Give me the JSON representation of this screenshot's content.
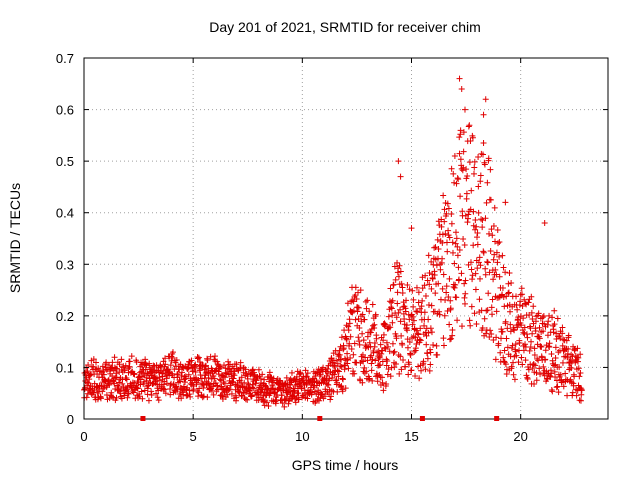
{
  "chart_data": {
    "type": "scatter",
    "title": "Day 201 of 2021, SRMTID for receiver chim",
    "xlabel": "GPS time / hours",
    "ylabel": "SRMTID / TECUs",
    "xlim": [
      0,
      24
    ],
    "ylim": [
      0,
      0.7
    ],
    "xticks": [
      0,
      5,
      10,
      15,
      20
    ],
    "yticks": [
      0,
      0.1,
      0.2,
      0.3,
      0.4,
      0.5,
      0.6,
      0.7
    ],
    "grid": true,
    "marker": "+",
    "color": "#e00000",
    "profile_hours": [
      0,
      1,
      2,
      3,
      4,
      5,
      6,
      7,
      8,
      9,
      10,
      11,
      11.8,
      12.3,
      13,
      13.7,
      14.3,
      15,
      15.6,
      16.3,
      17,
      17.5,
      18,
      18.5,
      19,
      19.6,
      20.2,
      21,
      21.6,
      22.3,
      22.8
    ],
    "profile_values": [
      0.075,
      0.075,
      0.08,
      0.075,
      0.085,
      0.08,
      0.08,
      0.075,
      0.065,
      0.055,
      0.06,
      0.07,
      0.1,
      0.17,
      0.15,
      0.12,
      0.2,
      0.16,
      0.19,
      0.26,
      0.35,
      0.38,
      0.36,
      0.34,
      0.22,
      0.17,
      0.16,
      0.14,
      0.13,
      0.1,
      0.08
    ],
    "spike_points": [
      {
        "x": 14.4,
        "y": 0.5
      },
      {
        "x": 14.5,
        "y": 0.47
      },
      {
        "x": 17.2,
        "y": 0.66
      },
      {
        "x": 17.3,
        "y": 0.64
      },
      {
        "x": 17.45,
        "y": 0.6
      },
      {
        "x": 18.3,
        "y": 0.59
      },
      {
        "x": 18.4,
        "y": 0.62
      },
      {
        "x": 21.1,
        "y": 0.38
      },
      {
        "x": 15.0,
        "y": 0.37
      },
      {
        "x": 19.3,
        "y": 0.42
      }
    ],
    "data_gap_markers_hours": [
      2.7,
      10.8,
      15.5,
      18.9
    ]
  }
}
